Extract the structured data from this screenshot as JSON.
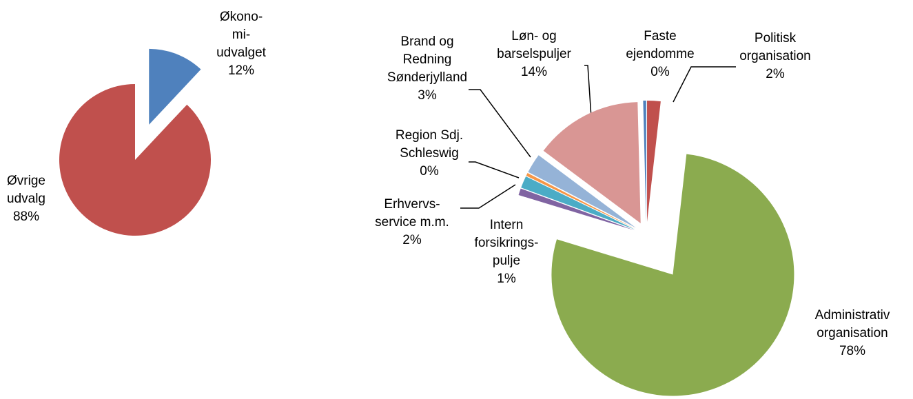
{
  "chart_data": [
    {
      "type": "pie",
      "categories": [
        "Økono-\nmi-\nudvalget",
        "Øvrige\nudvalg"
      ],
      "values": [
        12,
        88
      ],
      "value_labels": [
        "12%",
        "88%"
      ],
      "colors": [
        "#4F81BD",
        "#C0504D"
      ]
    },
    {
      "type": "pie",
      "categories": [
        "Politisk\norganisation",
        "Administrativ\norganisation",
        "Intern\nforsikrings-\npulje",
        "Erhvervs-\nservice m.m.",
        "Region Sdj.\nSchleswig",
        "Brand og\nRedning\nSønderjylland",
        "Løn- og\nbarselspuljer",
        "Faste\nejendomme"
      ],
      "values": [
        1.8,
        77.9,
        0.9,
        1.6,
        0.4,
        2.6,
        14.4,
        0.4
      ],
      "value_labels": [
        "2%",
        "78%",
        "1%",
        "2%",
        "0%",
        "3%",
        "14%",
        "0%"
      ],
      "colors": [
        "#C0504D",
        "#8BAB4F",
        "#8064A2",
        "#4BACC6",
        "#F79646",
        "#95B3D7",
        "#D99694",
        "#4F81BD"
      ]
    }
  ]
}
